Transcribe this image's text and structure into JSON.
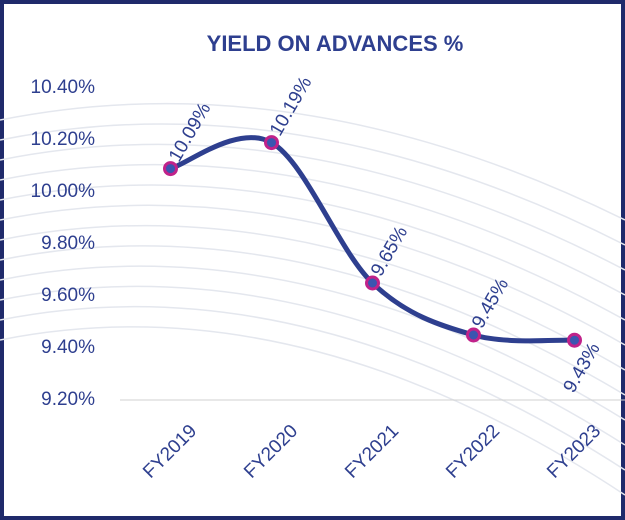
{
  "chart_data": {
    "type": "line",
    "title": "YIELD ON ADVANCES %",
    "categories": [
      "FY2019",
      "FY2020",
      "FY2021",
      "FY2022",
      "FY2023"
    ],
    "values": [
      10.09,
      10.19,
      9.65,
      9.45,
      9.43
    ],
    "value_labels": [
      "10.09%",
      "10.19%",
      "9.65%",
      "9.45%",
      "9.43%"
    ],
    "color": "#2e3f8f",
    "marker_color": "#c0228a",
    "ylim": [
      9.2,
      10.4
    ],
    "yticks": [
      {
        "value": 9.2,
        "label": "9.20%"
      },
      {
        "value": 9.4,
        "label": "9.40%"
      },
      {
        "value": 9.6,
        "label": "9.60%"
      },
      {
        "value": 9.8,
        "label": "9.80%"
      },
      {
        "value": 10.0,
        "label": "10.00%"
      },
      {
        "value": 10.2,
        "label": "10.20%"
      },
      {
        "value": 10.4,
        "label": "10.40%"
      }
    ],
    "smooth": true
  }
}
